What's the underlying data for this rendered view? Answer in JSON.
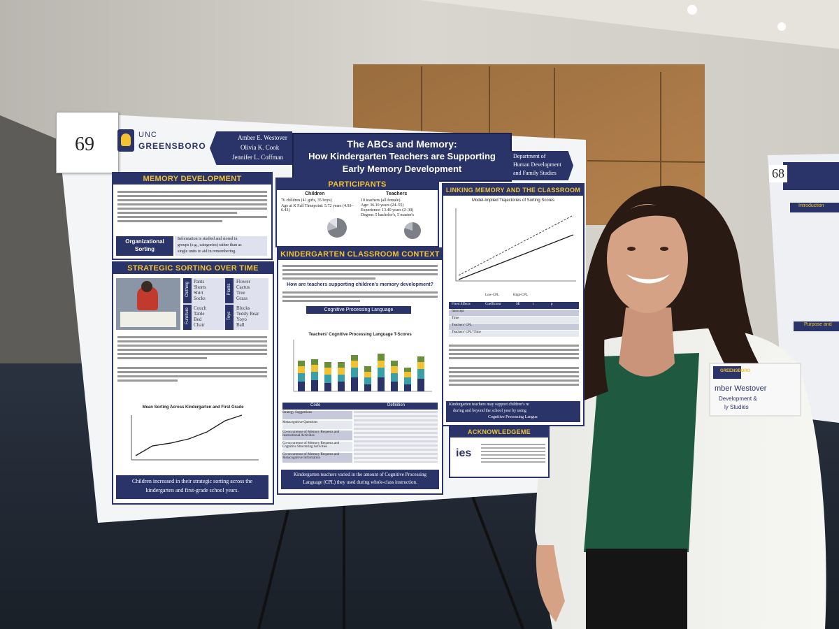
{
  "poster": {
    "number": "69",
    "university": {
      "prefix": "UNC",
      "name": "GREENSBORO"
    },
    "authors": [
      "Amber E. Westover",
      "Olivia K. Cook",
      "Jennifer L. Coffman"
    ],
    "title_line1": "The ABCs and Memory:",
    "title_line2": "How Kindergarten Teachers are Supporting",
    "title_line3": "Early Memory Development",
    "department": [
      "Department of",
      "Human Development",
      "and Family Studies"
    ],
    "sections": {
      "memory_development": {
        "heading": "MEMORY DEVELOPMENT",
        "callout_label": [
          "Organizational",
          "Sorting"
        ],
        "callout_text": [
          "Information is studied and stored in",
          "groups (e.g., categories) rather than as",
          "single units to aid in remembering."
        ]
      },
      "strategic_sorting": {
        "heading": "STRATEGIC SORTING OVER TIME",
        "categories": [
          {
            "label": "Clothing",
            "items": [
              "Pants",
              "Shorts",
              "Shirt",
              "Socks"
            ]
          },
          {
            "label": "Plants",
            "items": [
              "Flower",
              "Cactus",
              "Tree",
              "Grass"
            ]
          },
          {
            "label": "Furniture",
            "items": [
              "Couch",
              "Table",
              "Bed",
              "Chair"
            ]
          },
          {
            "label": "Toys",
            "items": [
              "Blocks",
              "Teddy Bear",
              "Yoyo",
              "Ball"
            ]
          }
        ],
        "chart_title": "Mean Sorting Across Kindergarten and First Grade",
        "conclusion": [
          "Children increased in their strategic sorting across the",
          "kindergarten and first-grade school years."
        ]
      },
      "participants": {
        "heading": "PARTICIPANTS",
        "children_label": "Children",
        "children_items": [
          "76 children (41 girls, 35 boys)",
          "Age at K Fall Timepoint: 5.72 years (4.93–6.43)"
        ],
        "teachers_label": "Teachers",
        "teachers_items": [
          "10 teachers (all female)",
          "Age: 36.10 years (24–55)",
          "Experience: 13.40 years (2–30)",
          "Degree: 5 bachelor's, 5 master's"
        ]
      },
      "classroom_context": {
        "heading": "KINDERGARTEN CLASSROOM CONTEXT",
        "question": "How are teachers supporting children's memory development?",
        "subheading": "Cognitive Processing Language",
        "chart_title": "Teachers' Cognitive Processing Language T-Scores",
        "table_headers": [
          "Code",
          "Definition"
        ],
        "table_rows": [
          "Strategy Suggestions",
          "Metacognitive Questions",
          "Co-occurrence of Memory Requests and Instructional Activities",
          "Co-occurrence of Memory Requests and Cognitive Structuring Activities",
          "Co-occurrence of Memory Requests and Metacognitive Information"
        ],
        "conclusion": [
          "Kindergarten teachers varied in the amount of Cognitive Processing",
          "Language (CPL) they used during whole-class instruction."
        ]
      },
      "linking": {
        "heading": "LINKING MEMORY AND THE CLASSROOM",
        "chart_title": "Model-Implied Trajectories of Sorting Scores",
        "legend": [
          "Low-CPL",
          "High-CPL"
        ],
        "table_headers": [
          "Fixed Effects",
          "Coefficient",
          "SE",
          "t",
          "p"
        ],
        "table_rows": [
          "Intercept",
          "Time",
          "Teachers' CPL",
          "Teachers' CPL*Time"
        ],
        "conclusion": [
          "Kindergarten teachers may support children's m",
          "during and beyond the school year by using",
          "Cognitive Processing Langua"
        ]
      },
      "acknowledgements": {
        "heading": "ACKNOWLEDGEME",
        "logo": "ies"
      }
    }
  },
  "neighbor_poster": {
    "number": "68",
    "headings": [
      "Introduction",
      "Purpose and"
    ]
  },
  "name_badge": {
    "university": "GREENSBORO",
    "name_line": "mber Westover",
    "line2": "Development &",
    "line3": "ly Studies"
  }
}
